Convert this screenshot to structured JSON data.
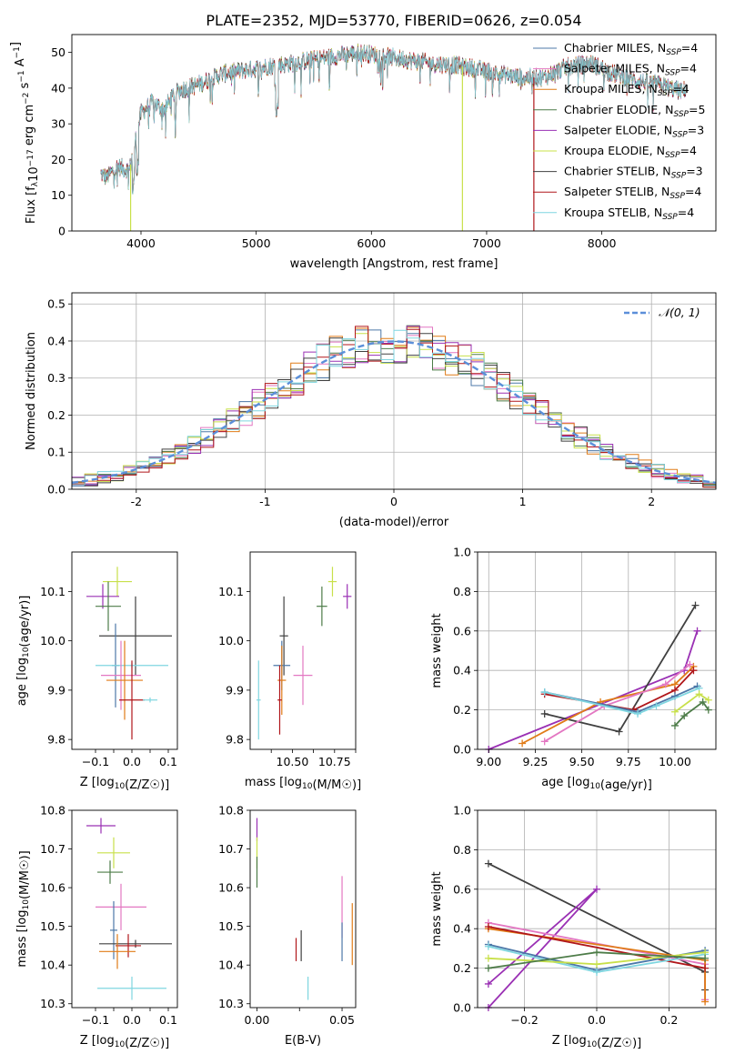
{
  "figure": {
    "title": "PLATE=2352, MJD=53770, FIBERID=0626, z=0.054"
  },
  "chart_data": [
    {
      "id": "spectrum",
      "type": "line",
      "xlabel": "wavelength [Angstrom, rest frame]",
      "ylabel": "Flux [f_λ10^-17 erg cm^-2 s^-1 A^-1]",
      "xlim": [
        3400,
        8990
      ],
      "ylim": [
        0,
        55
      ],
      "xticks": [
        4000,
        5000,
        6000,
        7000,
        8000
      ],
      "yticks": [
        0,
        10,
        20,
        30,
        40,
        50
      ],
      "grid": false,
      "legend_position": "top-right",
      "continuum": {
        "x": [
          3650,
          3700,
          3800,
          3900,
          3950,
          4000,
          4100,
          4200,
          4300,
          4400,
          4500,
          4700,
          4900,
          5100,
          5300,
          5500,
          5700,
          5900,
          6100,
          6300,
          6500,
          6700,
          6900,
          7100,
          7300,
          7500,
          7700,
          7900,
          8100,
          8300,
          8500,
          8700,
          8730
        ],
        "y": [
          16,
          15,
          18,
          17,
          25,
          33,
          36,
          34,
          39,
          40,
          41,
          44,
          45,
          46,
          47,
          48,
          49,
          50,
          49,
          48,
          47,
          46.5,
          45.5,
          44,
          43,
          43,
          46,
          47,
          44,
          42,
          41,
          39,
          40
        ]
      },
      "spikes": [
        {
          "x": 3910,
          "y_min": 0,
          "series": "Kroupa ELODIE"
        },
        {
          "x": 6790,
          "y_min": 0,
          "series": "Kroupa ELODIE"
        },
        {
          "x": 7410,
          "y_min": 0,
          "series": "Salpeter STELIB"
        }
      ],
      "series": [
        {
          "name": "Chabrier MILES",
          "nssp": "4",
          "color": "#4c78a8"
        },
        {
          "name": "Salpeter MILES",
          "nssp": "4",
          "color": "#e377c2"
        },
        {
          "name": "Kroupa MILES",
          "nssp": "4",
          "color": "#e07b17"
        },
        {
          "name": "Chabrier ELODIE",
          "nssp": "5",
          "color": "#4d7c48"
        },
        {
          "name": "Salpeter ELODIE",
          "nssp": "3",
          "color": "#9a30b4"
        },
        {
          "name": "Kroupa ELODIE",
          "nssp": "4",
          "color": "#c8e04a"
        },
        {
          "name": "Chabrier STELIB",
          "nssp": "3",
          "color": "#404040"
        },
        {
          "name": "Salpeter STELIB",
          "nssp": "4",
          "color": "#b0161a"
        },
        {
          "name": "Kroupa STELIB",
          "nssp": "4",
          "color": "#7fd6e0"
        }
      ],
      "legend_label_prefix": "N",
      "legend_label_subscript": "SSP"
    },
    {
      "id": "residuals",
      "type": "histogram",
      "xlabel": "(data-model)/error",
      "ylabel": "Normed distribution",
      "xlim": [
        -2.5,
        2.5
      ],
      "ylim": [
        0,
        0.53
      ],
      "xticks": [
        -2,
        -1,
        0,
        1,
        2
      ],
      "yticks": [
        0.0,
        0.1,
        0.2,
        0.3,
        0.4,
        0.5
      ],
      "grid": true,
      "legend_position": "top-right",
      "legend_label": "𝒩(0, 1)",
      "bin_edges_start": -2.6,
      "bin_width": 0.1,
      "reference_curve": {
        "name": "N(0,1)",
        "mean": 0,
        "sigma": 1,
        "color": "#5b8fd9"
      }
    },
    {
      "id": "age_vs_Z",
      "type": "errorbar",
      "xlabel": "Z [log10(Z/Z☉)]",
      "ylabel": "age  [log10(age/yr)]",
      "xlim": [
        -0.165,
        0.125
      ],
      "ylim": [
        9.78,
        10.18
      ],
      "xticks": [
        -0.1,
        -0.05,
        0.0,
        0.05,
        0.1
      ],
      "xticklabels": [
        "−0.1",
        "",
        "0.0",
        "",
        "0.1"
      ],
      "yticks": [
        9.8,
        9.9,
        10.0,
        10.1
      ],
      "grid": false,
      "points": [
        {
          "series": "Kroupa ELODIE",
          "x": -0.04,
          "xerr": 0.04,
          "y": 10.12,
          "yerr": 0.03
        },
        {
          "series": "Salpeter ELODIE",
          "x": -0.08,
          "xerr": 0.045,
          "y": 10.09,
          "yerr": 0.025
        },
        {
          "series": "Chabrier ELODIE",
          "x": -0.065,
          "xerr": 0.035,
          "y": 10.07,
          "yerr": 0.05
        },
        {
          "series": "Chabrier STELIB",
          "x": 0.01,
          "xerr": 0.1,
          "y": 10.01,
          "yerr": 0.08
        },
        {
          "series": "Chabrier MILES",
          "x": -0.045,
          "xerr": 0.01,
          "y": 9.95,
          "yerr": 0.085
        },
        {
          "series": "Kroupa STELIB",
          "x": 0.0,
          "xerr": 0.1,
          "y": 9.95,
          "yerr": 0.005
        },
        {
          "series": "Salpeter MILES",
          "x": -0.03,
          "xerr": 0.055,
          "y": 9.93,
          "yerr": 0.07
        },
        {
          "series": "Kroupa MILES",
          "x": -0.02,
          "xerr": 0.05,
          "y": 9.92,
          "yerr": 0.08
        },
        {
          "series": "Salpeter STELIB",
          "x": 0.0,
          "xerr": 0.035,
          "y": 9.88,
          "yerr": 0.08
        },
        {
          "series": "Kroupa STELIB",
          "x": 0.05,
          "xerr": 0.02,
          "y": 9.88,
          "yerr": 0.005
        }
      ]
    },
    {
      "id": "age_vs_mass",
      "type": "errorbar",
      "xlabel": "mass [log10(M/M☉)]",
      "ylabel": "",
      "xlim": [
        10.3,
        10.8
      ],
      "ylim": [
        9.78,
        10.18
      ],
      "xticks": [
        10.4,
        10.5,
        10.6,
        10.7,
        10.8
      ],
      "xticklabels": [
        "",
        "10.50",
        "",
        "10.75",
        ""
      ],
      "yticks": [
        9.8,
        9.9,
        10.0,
        10.1
      ],
      "grid": false,
      "points": [
        {
          "series": "Kroupa ELODIE",
          "x": 10.69,
          "xerr": 0.02,
          "y": 10.12,
          "yerr": 0.03
        },
        {
          "series": "Salpeter ELODIE",
          "x": 10.76,
          "xerr": 0.02,
          "y": 10.09,
          "yerr": 0.025
        },
        {
          "series": "Chabrier ELODIE",
          "x": 10.64,
          "xerr": 0.025,
          "y": 10.07,
          "yerr": 0.04
        },
        {
          "series": "Chabrier STELIB",
          "x": 10.46,
          "xerr": 0.02,
          "y": 10.01,
          "yerr": 0.08
        },
        {
          "series": "Chabrier MILES",
          "x": 10.45,
          "xerr": 0.04,
          "y": 9.95,
          "yerr": 0.05
        },
        {
          "series": "Salpeter MILES",
          "x": 10.55,
          "xerr": 0.045,
          "y": 9.93,
          "yerr": 0.06
        },
        {
          "series": "Kroupa MILES",
          "x": 10.45,
          "xerr": 0.02,
          "y": 9.92,
          "yerr": 0.07
        },
        {
          "series": "Kroupa STELIB",
          "x": 10.34,
          "xerr": 0.01,
          "y": 9.88,
          "yerr": 0.08
        },
        {
          "series": "Salpeter STELIB",
          "x": 10.44,
          "xerr": 0.01,
          "y": 9.88,
          "yerr": 0.07
        }
      ]
    },
    {
      "id": "mass_weight_vs_age",
      "type": "line",
      "xlabel": "age  [log10(age/yr)]",
      "ylabel": "mass weight",
      "xlim": [
        8.94,
        10.22
      ],
      "ylim": [
        0,
        1
      ],
      "xticks": [
        9.0,
        9.25,
        9.5,
        9.75,
        10.0
      ],
      "xticklabels": [
        "9.00",
        "9.25",
        "9.50",
        "9.75",
        "10.00"
      ],
      "yticks": [
        0.0,
        0.2,
        0.4,
        0.6,
        0.8,
        1.0
      ],
      "grid": true,
      "series": [
        {
          "name": "Salpeter ELODIE",
          "x": [
            9.0,
            10.05,
            10.12
          ],
          "y": [
            0.0,
            0.4,
            0.6
          ]
        },
        {
          "name": "Chabrier STELIB",
          "x": [
            9.3,
            9.7,
            10.11
          ],
          "y": [
            0.18,
            0.09,
            0.73
          ]
        },
        {
          "name": "Kroupa MILES",
          "x": [
            9.18,
            9.6,
            10.0,
            10.1
          ],
          "y": [
            0.03,
            0.24,
            0.33,
            0.42
          ]
        },
        {
          "name": "Salpeter MILES",
          "x": [
            9.3,
            9.62,
            9.95,
            10.08
          ],
          "y": [
            0.04,
            0.22,
            0.33,
            0.43
          ]
        },
        {
          "name": "Salpeter STELIB",
          "x": [
            9.3,
            9.78,
            10.0,
            10.1
          ],
          "y": [
            0.28,
            0.2,
            0.3,
            0.4
          ]
        },
        {
          "name": "Chabrier MILES",
          "x": [
            9.3,
            9.8,
            10.0,
            10.12
          ],
          "y": [
            0.29,
            0.19,
            0.27,
            0.32
          ]
        },
        {
          "name": "Kroupa STELIB",
          "x": [
            9.3,
            9.8,
            9.9,
            10.13
          ],
          "y": [
            0.29,
            0.18,
            0.22,
            0.31
          ]
        },
        {
          "name": "Kroupa ELODIE",
          "x": [
            10.0,
            10.13,
            10.18
          ],
          "y": [
            0.19,
            0.28,
            0.25
          ]
        },
        {
          "name": "Chabrier ELODIE",
          "x": [
            10.0,
            10.05,
            10.15,
            10.18
          ],
          "y": [
            0.12,
            0.17,
            0.24,
            0.2
          ]
        }
      ]
    },
    {
      "id": "mass_vs_Z",
      "type": "errorbar",
      "xlabel": "Z [log10(Z/Z☉)]",
      "ylabel": "mass [log10(M/M☉)]",
      "xlim": [
        -0.165,
        0.125
      ],
      "ylim": [
        10.29,
        10.8
      ],
      "xticks": [
        -0.1,
        -0.05,
        0.0,
        0.05,
        0.1
      ],
      "xticklabels": [
        "−0.1",
        "",
        "0.0",
        "",
        "0.1"
      ],
      "yticks": [
        10.3,
        10.4,
        10.5,
        10.6,
        10.7,
        10.8
      ],
      "grid": false,
      "points": [
        {
          "series": "Salpeter ELODIE",
          "x": -0.085,
          "xerr": 0.04,
          "y": 10.76,
          "yerr": 0.02
        },
        {
          "series": "Kroupa ELODIE",
          "x": -0.05,
          "xerr": 0.045,
          "y": 10.69,
          "yerr": 0.04
        },
        {
          "series": "Chabrier ELODIE",
          "x": -0.06,
          "xerr": 0.035,
          "y": 10.64,
          "yerr": 0.03
        },
        {
          "series": "Salpeter MILES",
          "x": -0.03,
          "xerr": 0.07,
          "y": 10.55,
          "yerr": 0.06
        },
        {
          "series": "Chabrier MILES",
          "x": -0.05,
          "xerr": 0.01,
          "y": 10.49,
          "yerr": 0.075
        },
        {
          "series": "Chabrier STELIB",
          "x": 0.01,
          "xerr": 0.1,
          "y": 10.455,
          "yerr": 0.01
        },
        {
          "series": "Salpeter STELIB",
          "x": -0.01,
          "xerr": 0.035,
          "y": 10.45,
          "yerr": 0.03
        },
        {
          "series": "Kroupa MILES",
          "x": -0.04,
          "xerr": 0.05,
          "y": 10.435,
          "yerr": 0.045
        },
        {
          "series": "Kroupa STELIB",
          "x": 0.0,
          "xerr": 0.095,
          "y": 10.34,
          "yerr": 0.03
        }
      ]
    },
    {
      "id": "mass_vs_EBV",
      "type": "errorbar",
      "xlabel": "E(B-V)",
      "ylabel": "",
      "xlim": [
        -0.004,
        0.058
      ],
      "ylim": [
        10.29,
        10.8
      ],
      "xticks": [
        0.0,
        0.025,
        0.05
      ],
      "xticklabels": [
        "0.00",
        "",
        "0.05"
      ],
      "yticks": [
        10.3,
        10.4,
        10.5,
        10.6,
        10.7,
        10.8
      ],
      "grid": false,
      "points": [
        {
          "series": "Salpeter ELODIE",
          "x": 0.0,
          "xerr": 0.0,
          "y": 10.75,
          "yerr": 0.03
        },
        {
          "series": "Kroupa ELODIE",
          "x": 0.0,
          "xerr": 0.0,
          "y": 10.69,
          "yerr": 0.04
        },
        {
          "series": "Chabrier ELODIE",
          "x": 0.0,
          "xerr": 0.0,
          "y": 10.64,
          "yerr": 0.04
        },
        {
          "series": "Salpeter MILES",
          "x": 0.05,
          "xerr": 0.0,
          "y": 10.55,
          "yerr": 0.08
        },
        {
          "series": "Chabrier MILES",
          "x": 0.05,
          "xerr": 0.0,
          "y": 10.46,
          "yerr": 0.05
        },
        {
          "series": "Chabrier STELIB",
          "x": 0.026,
          "xerr": 0.0,
          "y": 10.45,
          "yerr": 0.04
        },
        {
          "series": "Salpeter STELIB",
          "x": 0.023,
          "xerr": 0.0,
          "y": 10.44,
          "yerr": 0.03
        },
        {
          "series": "Kroupa MILES",
          "x": 0.056,
          "xerr": 0.0,
          "y": 10.48,
          "yerr": 0.08
        },
        {
          "series": "Kroupa STELIB",
          "x": 0.03,
          "xerr": 0.0,
          "y": 10.34,
          "yerr": 0.03
        }
      ]
    },
    {
      "id": "mass_weight_vs_Z",
      "type": "line",
      "xlabel": "Z [log10(Z/Z☉)]",
      "ylabel": "mass weight",
      "xlim": [
        -0.33,
        0.33
      ],
      "ylim": [
        0,
        1
      ],
      "xticks": [
        -0.2,
        0.0,
        0.2
      ],
      "xticklabels": [
        "−0.2",
        "0.0",
        "0.2"
      ],
      "yticks": [
        0.0,
        0.2,
        0.4,
        0.6,
        0.8,
        1.0
      ],
      "grid": true,
      "series": [
        {
          "name": "Chabrier STELIB",
          "x": [
            -0.3,
            0.3,
            0.3
          ],
          "y": [
            0.73,
            0.18,
            0.09
          ]
        },
        {
          "name": "Salpeter ELODIE",
          "x": [
            -0.3,
            0.0,
            -0.3
          ],
          "y": [
            0.0,
            0.6,
            0.12
          ]
        },
        {
          "name": "Salpeter MILES",
          "x": [
            -0.3,
            0.3,
            0.3
          ],
          "y": [
            0.43,
            0.22,
            0.04
          ]
        },
        {
          "name": "Kroupa MILES",
          "x": [
            -0.3,
            0.3,
            0.3
          ],
          "y": [
            0.4,
            0.24,
            0.03
          ]
        },
        {
          "name": "Salpeter STELIB",
          "x": [
            -0.3,
            0.3
          ],
          "y": [
            0.41,
            0.2
          ]
        },
        {
          "name": "Chabrier MILES",
          "x": [
            -0.3,
            0.0,
            0.3
          ],
          "y": [
            0.32,
            0.19,
            0.29
          ]
        },
        {
          "name": "Kroupa STELIB",
          "x": [
            -0.3,
            0.0,
            0.3
          ],
          "y": [
            0.31,
            0.18,
            0.27
          ]
        },
        {
          "name": "Kroupa ELODIE",
          "x": [
            -0.3,
            0.0,
            0.3
          ],
          "y": [
            0.25,
            0.22,
            0.28
          ]
        },
        {
          "name": "Chabrier ELODIE",
          "x": [
            -0.3,
            0.0,
            0.3
          ],
          "y": [
            0.2,
            0.28,
            0.25
          ]
        }
      ]
    }
  ]
}
